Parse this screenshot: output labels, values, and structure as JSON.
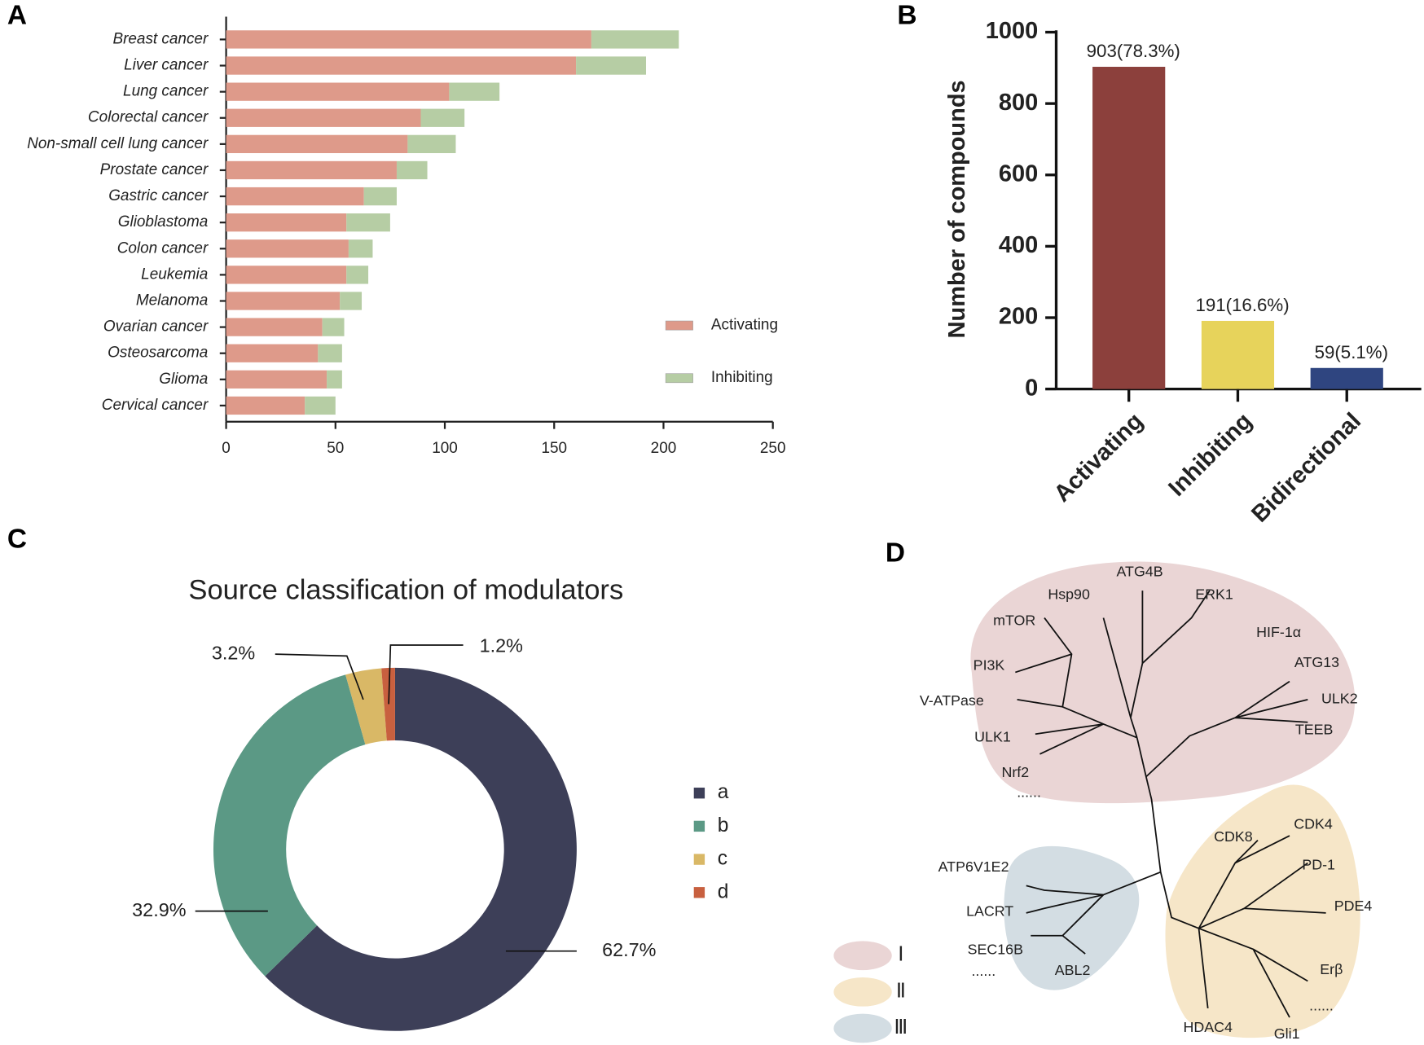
{
  "chart_data": [
    {
      "panel": "A",
      "type": "stacked_bar_h",
      "categories": [
        "Breast cancer",
        "Liver cancer",
        "Lung cancer",
        "Colorectal cancer",
        "Non-small cell lung cancer",
        "Prostate cancer",
        "Gastric cancer",
        "Glioblastoma",
        "Colon cancer",
        "Leukemia",
        "Melanoma",
        "Ovarian cancer",
        "Osteosarcoma",
        "Glioma",
        "Cervical cancer"
      ],
      "series": [
        {
          "name": "Activating",
          "color": "#de9a8a",
          "values": [
            167,
            160,
            102,
            89,
            83,
            78,
            63,
            55,
            56,
            55,
            52,
            44,
            42,
            46,
            36
          ]
        },
        {
          "name": "Inhibiting",
          "color": "#b6cda4",
          "values": [
            40,
            32,
            23,
            20,
            22,
            14,
            15,
            20,
            11,
            10,
            10,
            10,
            11,
            7,
            14
          ]
        }
      ],
      "xlim": [
        0,
        250
      ],
      "xticks": [
        0,
        50,
        100,
        150,
        200,
        250
      ]
    },
    {
      "panel": "B",
      "type": "bar",
      "categories": [
        "Activating",
        "Inhibiting",
        "Bidirectional"
      ],
      "values": [
        903,
        191,
        59
      ],
      "value_labels": [
        "903(78.3%)",
        "191(16.6%)",
        "59(5.1%)"
      ],
      "colors": [
        "#8c403c",
        "#e7d35b",
        "#2f4580"
      ],
      "ylabel": "Number of compounds",
      "ylim": [
        0,
        1000
      ],
      "yticks": [
        0,
        200,
        400,
        600,
        800,
        1000
      ]
    },
    {
      "panel": "C",
      "type": "donut",
      "title": "Source classification of modulators",
      "categories": [
        "a",
        "b",
        "c",
        "d"
      ],
      "values": [
        62.7,
        32.9,
        3.2,
        1.2
      ],
      "value_labels": [
        "62.7%",
        "32.9%",
        "3.2%",
        "1.2%"
      ],
      "colors": [
        "#3d3f58",
        "#5b9985",
        "#d9b866",
        "#c8603f"
      ]
    },
    {
      "panel": "D",
      "type": "tree",
      "clusters": [
        {
          "name": "Ⅰ",
          "color": "#ead5d5",
          "labels": [
            "ATG4B",
            "Hsp90",
            "ERK1",
            "mTOR",
            "HIF-1α",
            "PI3K",
            "ATG13",
            "V-ATPase",
            "ULK2",
            "ULK1",
            "TEEB",
            "Nrf2",
            "......"
          ]
        },
        {
          "name": "Ⅱ",
          "color": "#f6e6c8",
          "labels": [
            "CDK8",
            "CDK4",
            "PD-1",
            "PDE4",
            "Erβ",
            "......",
            "HDAC4",
            "Gli1"
          ]
        },
        {
          "name": "Ⅲ",
          "color": "#d3dde3",
          "labels": [
            "ATP6V1E2",
            "LACRT",
            "SEC16B",
            "ABL2",
            "......"
          ]
        }
      ]
    }
  ]
}
